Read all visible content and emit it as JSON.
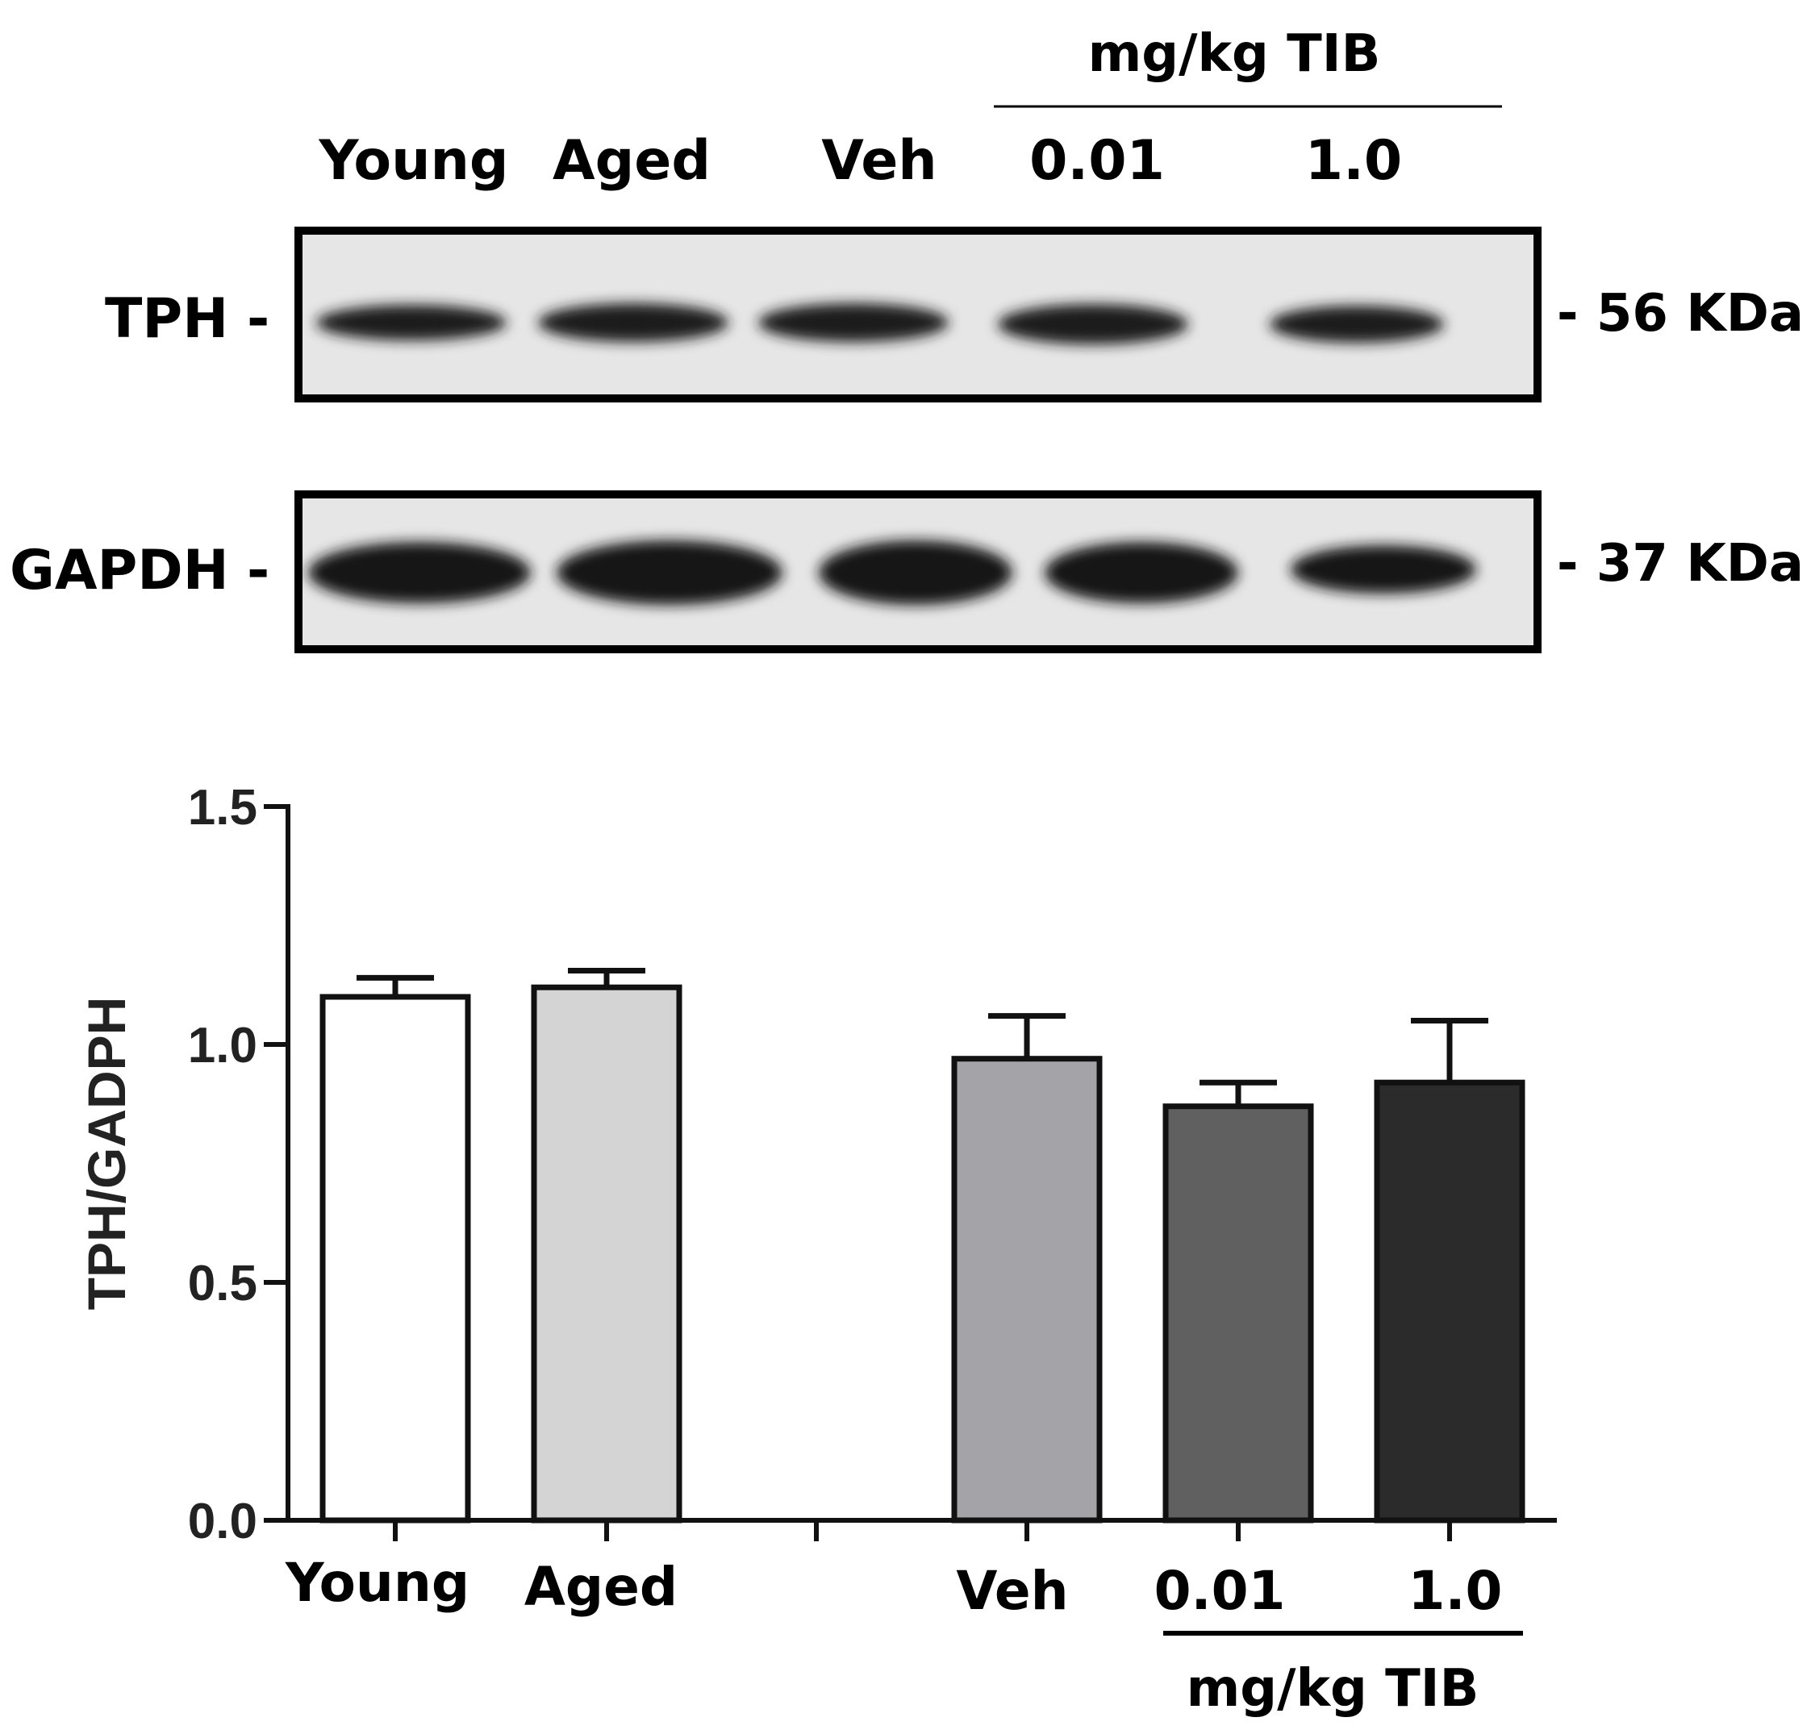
{
  "blot": {
    "group_label": "mg/kg TIB",
    "lanes": [
      "Young",
      "Aged",
      "Veh",
      "0.01",
      "1.0"
    ],
    "rows": [
      {
        "name": "TPH",
        "dash_left": "-",
        "marker": "- 56 KDa"
      },
      {
        "name": "GAPDH",
        "dash_left": "-",
        "marker": "- 37 KDa"
      }
    ]
  },
  "chart_data": {
    "type": "bar",
    "categories": [
      "Young",
      "Aged",
      "Veh",
      "0.01",
      "1.0"
    ],
    "values": [
      1.1,
      1.12,
      0.97,
      0.87,
      0.92
    ],
    "errors": [
      0.04,
      0.035,
      0.09,
      0.05,
      0.13
    ],
    "colors": [
      "#ffffff",
      "#d4d4d4",
      "#a3a3a8",
      "#606060",
      "#2b2b2b"
    ],
    "ylabel": "TPH/GADPH",
    "ylim": [
      0,
      1.5
    ],
    "yticks": [
      "0.0",
      "0.5",
      "1.0",
      "1.5"
    ],
    "group_label": "mg/kg TIB",
    "grid": false
  }
}
